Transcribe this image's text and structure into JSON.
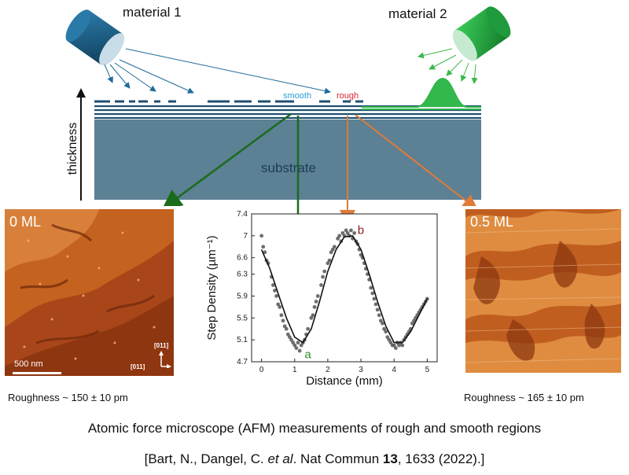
{
  "labels": {
    "material1": "material 1",
    "material2": "material 2",
    "smooth": "smooth",
    "rough": "rough",
    "substrate": "substrate",
    "thickness": "thickness"
  },
  "afm_left": {
    "label": "0 ML",
    "scale": "500 nm",
    "dir_up": "[011]",
    "dir_right": "[011]",
    "roughness_prefix": "Roughness ~ 150",
    "roughness_suffix": "± 10 pm"
  },
  "afm_right": {
    "label": "0.5 ML",
    "roughness_prefix": "Roughness ~ 165",
    "roughness_suffix": "± 10 pm"
  },
  "caption": "Atomic force microscope (AFM) measurements of rough and smooth regions",
  "citation": {
    "part1": "[Bart, N., Dangel, C. ",
    "etal": "et al",
    "part2": ". Nat Commun ",
    "volume": "13",
    "part3": ", 1633 (2022).]"
  },
  "colors": {
    "material1": "#1f5f82",
    "material2": "#1fa03c",
    "substrate": "#5c8094",
    "smooth": "#2a9fd6",
    "rough": "#d9232e",
    "arrow_green": "#1a6b1a",
    "arrow_orange": "#e07b39",
    "afm_dark": "#7a2a05",
    "afm_light": "#e8923a"
  },
  "chart_data": {
    "type": "scatter",
    "xlabel": "Distance (mm)",
    "ylabel": "Step Density (µm⁻¹)",
    "xlim": [
      -0.3,
      5.3
    ],
    "ylim": [
      4.7,
      7.4
    ],
    "xticks": [
      0,
      1,
      2,
      3,
      4,
      5
    ],
    "yticks": [
      4.7,
      5.1,
      5.5,
      5.9,
      6.3,
      6.6,
      7,
      7.4
    ],
    "points_x": [
      0.0,
      0.05,
      0.1,
      0.15,
      0.2,
      0.3,
      0.35,
      0.4,
      0.45,
      0.5,
      0.55,
      0.6,
      0.65,
      0.7,
      0.75,
      0.8,
      0.85,
      0.9,
      0.95,
      1.0,
      1.05,
      1.1,
      1.15,
      1.2,
      1.25,
      1.3,
      1.35,
      1.4,
      1.5,
      1.55,
      1.6,
      1.65,
      1.7,
      1.8,
      1.85,
      1.9,
      2.0,
      2.05,
      2.1,
      2.15,
      2.2,
      2.3,
      2.35,
      2.4,
      2.45,
      2.5,
      2.55,
      2.6,
      2.65,
      2.7,
      2.75,
      2.8,
      2.85,
      2.9,
      2.95,
      3.0,
      3.05,
      3.1,
      3.15,
      3.2,
      3.25,
      3.3,
      3.35,
      3.4,
      3.45,
      3.5,
      3.55,
      3.6,
      3.65,
      3.7,
      3.75,
      3.8,
      3.85,
      3.9,
      3.95,
      4.0,
      4.05,
      4.1,
      4.15,
      4.2,
      4.25,
      4.3,
      4.35,
      4.4,
      4.45,
      4.5,
      4.55,
      4.6,
      4.65,
      4.7,
      4.75,
      4.8,
      4.85,
      4.9,
      4.95,
      5.0
    ],
    "points_y": [
      7.0,
      6.8,
      6.7,
      6.55,
      6.5,
      6.25,
      6.1,
      6.0,
      5.9,
      5.75,
      5.7,
      5.55,
      5.45,
      5.35,
      5.3,
      5.2,
      5.15,
      5.1,
      5.05,
      5.0,
      4.95,
      5.05,
      4.9,
      5.0,
      5.05,
      5.1,
      5.2,
      5.3,
      5.5,
      5.55,
      5.7,
      5.8,
      5.9,
      6.1,
      6.25,
      6.35,
      6.5,
      6.55,
      6.7,
      6.75,
      6.8,
      6.95,
      7.0,
      6.9,
      7.05,
      7.0,
      7.1,
      7.05,
      7.0,
      7.1,
      6.95,
      7.05,
      6.9,
      6.85,
      6.75,
      6.65,
      6.6,
      6.5,
      6.4,
      6.3,
      6.2,
      6.05,
      5.95,
      5.85,
      5.75,
      5.65,
      5.55,
      5.45,
      5.4,
      5.3,
      5.25,
      5.15,
      5.1,
      5.05,
      5.0,
      5.0,
      4.95,
      5.05,
      5.0,
      5.05,
      5.0,
      5.1,
      5.15,
      5.2,
      5.25,
      5.3,
      5.4,
      5.45,
      5.5,
      5.55,
      5.6,
      5.65,
      5.7,
      5.75,
      5.8,
      5.85
    ],
    "fit_x": [
      0.0,
      0.25,
      0.5,
      0.75,
      1.0,
      1.25,
      1.5,
      1.75,
      2.0,
      2.25,
      2.5,
      2.75,
      3.0,
      3.25,
      3.5,
      3.75,
      4.0,
      4.25,
      4.5,
      4.75,
      5.0
    ],
    "fit_y": [
      6.75,
      6.4,
      5.95,
      5.5,
      5.15,
      5.05,
      5.3,
      5.8,
      6.35,
      6.75,
      6.98,
      7.0,
      6.75,
      6.3,
      5.8,
      5.35,
      5.05,
      5.05,
      5.25,
      5.55,
      5.85
    ],
    "annotations": [
      {
        "text": "a",
        "x": 1.25,
        "y": 4.85,
        "color": "#2e8b2e"
      },
      {
        "text": "b",
        "x": 2.85,
        "y": 7.12,
        "color": "#8b1a1a"
      }
    ]
  }
}
